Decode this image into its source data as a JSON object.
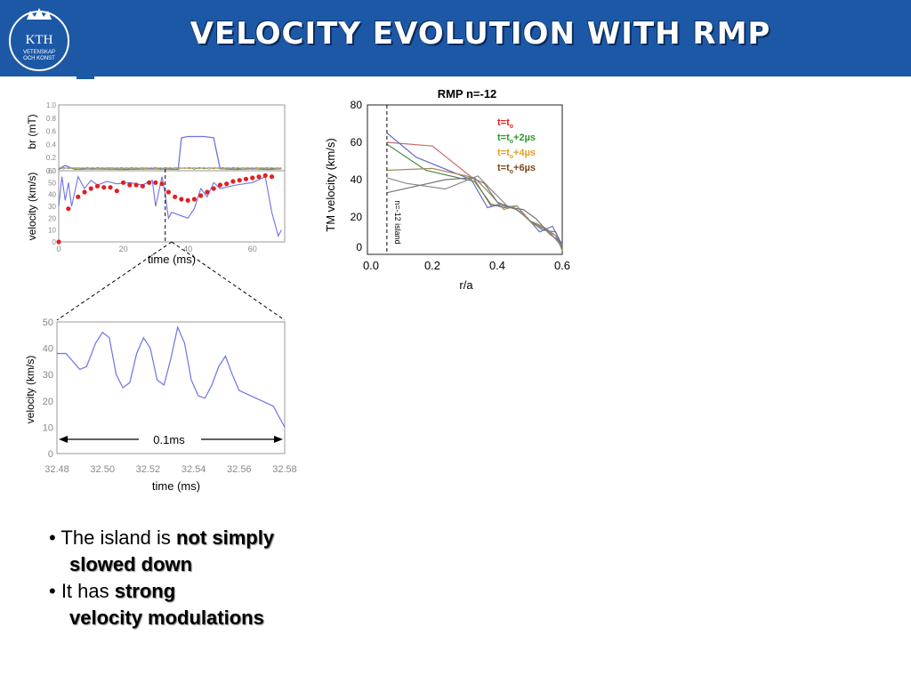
{
  "header": {
    "title": "VELOCITY EVOLUTION WITH RMP",
    "logo_text": [
      "KTH",
      "VETENSKAP",
      "OCH KONST"
    ],
    "color": "#1c58a6"
  },
  "chart_data": [
    {
      "type": "line",
      "id": "br-top",
      "ylabel": "br (mT)",
      "xlim": [
        0,
        70
      ],
      "ylim": [
        0,
        1.0
      ],
      "yticks": [
        "1.0",
        "0.8",
        "0.6",
        "0.4",
        "0.2",
        "0.0"
      ],
      "series": [
        {
          "color": "#6f72e6",
          "x": [
            0,
            2,
            5,
            10,
            20,
            30,
            37,
            38,
            40,
            45,
            48,
            50,
            55,
            60,
            65,
            69
          ],
          "y": [
            0.03,
            0.08,
            0.02,
            0.03,
            0.02,
            0.03,
            0.02,
            0.5,
            0.52,
            0.52,
            0.5,
            0.03,
            0.02,
            0.03,
            0.02,
            0.03
          ]
        }
      ]
    },
    {
      "type": "line+scatter",
      "id": "velocity-mid",
      "ylabel": "velocity (km/s)",
      "xlabel": "time (ms)",
      "xlim": [
        0,
        70
      ],
      "ylim": [
        0,
        60
      ],
      "xticks": [
        "0",
        "20",
        "40",
        "60"
      ],
      "yticks": [
        "60",
        "50",
        "40",
        "30",
        "20",
        "10",
        "0"
      ],
      "marker_x": 33,
      "line": {
        "color": "#6f72e6",
        "x": [
          0,
          1,
          2,
          3,
          4,
          6,
          8,
          10,
          12,
          15,
          18,
          22,
          26,
          29,
          30,
          32,
          33,
          34,
          35,
          38,
          40,
          42,
          44,
          46,
          48,
          50,
          55,
          60,
          64,
          66,
          68,
          69
        ],
        "y": [
          30,
          55,
          35,
          50,
          30,
          55,
          45,
          52,
          48,
          51,
          49,
          50,
          48,
          52,
          30,
          55,
          40,
          20,
          25,
          22,
          20,
          28,
          45,
          38,
          50,
          45,
          48,
          50,
          55,
          25,
          5,
          10
        ]
      },
      "markers": {
        "color": "#e02020",
        "x": [
          0,
          3,
          6,
          8,
          10,
          12,
          14,
          16,
          18,
          20,
          22,
          24,
          26,
          28,
          30,
          32,
          34,
          36,
          38,
          40,
          42,
          44,
          46,
          48,
          50,
          52,
          54,
          56,
          58,
          60,
          62,
          64,
          66
        ],
        "y": [
          0,
          28,
          38,
          42,
          45,
          47,
          46,
          46,
          43,
          50,
          48,
          48,
          47,
          50,
          50,
          49,
          42,
          38,
          36,
          35,
          36,
          39,
          42,
          45,
          48,
          49,
          51,
          52,
          53,
          54,
          55,
          56,
          55
        ]
      }
    },
    {
      "type": "line",
      "id": "velocity-zoom",
      "ylabel": "velocity (km/s)",
      "xlabel": "time (ms)",
      "annotation": "0.1ms",
      "xlim": [
        32.48,
        32.58
      ],
      "ylim": [
        0,
        50
      ],
      "xticks": [
        "32.48",
        "32.50",
        "32.52",
        "32.54",
        "32.56",
        "32.58"
      ],
      "yticks": [
        "50",
        "40",
        "30",
        "20",
        "10",
        "0"
      ],
      "series": [
        {
          "color": "#6f72e6",
          "x": [
            32.48,
            32.484,
            32.49,
            32.493,
            32.497,
            32.5,
            32.503,
            32.506,
            32.509,
            32.512,
            32.515,
            32.518,
            32.521,
            32.524,
            32.527,
            32.53,
            32.533,
            32.536,
            32.539,
            32.542,
            32.545,
            32.548,
            32.551,
            32.554,
            32.557,
            32.56,
            32.565,
            32.57,
            32.575,
            32.58
          ],
          "y": [
            38,
            38,
            32,
            33,
            42,
            46,
            44,
            30,
            25,
            27,
            38,
            44,
            40,
            28,
            26,
            36,
            48,
            42,
            28,
            22,
            21,
            26,
            33,
            37,
            30,
            24,
            22,
            20,
            18,
            10
          ]
        }
      ]
    },
    {
      "type": "line",
      "id": "rmp-right",
      "title": "RMP n=-12",
      "ylabel": "TM velocity (km/s)",
      "xlabel": "r/a",
      "xlim": [
        0,
        0.6
      ],
      "ylim": [
        0,
        80
      ],
      "xticks": [
        "0.0",
        "0.2",
        "0.4",
        "0.6"
      ],
      "yticks": [
        "80",
        "60",
        "40",
        "20",
        "0"
      ],
      "island_label": "n=-12 island",
      "island_x": 0.06,
      "legend": [
        {
          "label": "t=t",
          "sub": "o",
          "suffix": "",
          "color": "#e02020"
        },
        {
          "label": "t=t",
          "sub": "o",
          "suffix": "+2µs",
          "color": "#2a9a2a"
        },
        {
          "label": "t=t",
          "sub": "o",
          "suffix": "+4µs",
          "color": "#e0a020"
        },
        {
          "label": "t=t",
          "sub": "o",
          "suffix": "+6µs",
          "color": "#7a4a20"
        }
      ],
      "series": [
        {
          "color": "#c76a6a",
          "x": [
            0.06,
            0.2,
            0.33,
            0.38,
            0.42,
            0.46,
            0.5,
            0.54,
            0.58,
            0.6
          ],
          "y": [
            60,
            58,
            40,
            26,
            26,
            24,
            18,
            14,
            10,
            5
          ]
        },
        {
          "color": "#4a8a4a",
          "x": [
            0.06,
            0.18,
            0.33,
            0.38,
            0.42,
            0.46,
            0.5,
            0.54,
            0.58,
            0.6
          ],
          "y": [
            59,
            45,
            39,
            27,
            25,
            26,
            18,
            13,
            12,
            3
          ]
        },
        {
          "color": "#6a6ac7",
          "x": [
            0.06,
            0.15,
            0.32,
            0.37,
            0.41,
            0.45,
            0.49,
            0.53,
            0.57,
            0.6
          ],
          "y": [
            65,
            52,
            40,
            25,
            27,
            25,
            20,
            12,
            15,
            5
          ]
        },
        {
          "color": "#a38a5a",
          "x": [
            0.06,
            0.2,
            0.33,
            0.38,
            0.42,
            0.46,
            0.5,
            0.54,
            0.58,
            0.6
          ],
          "y": [
            45,
            46,
            41,
            32,
            24,
            26,
            18,
            15,
            10,
            2
          ]
        },
        {
          "color": "#888888",
          "x": [
            0.06,
            0.12,
            0.24,
            0.34,
            0.39,
            0.43,
            0.47,
            0.51,
            0.55,
            0.6
          ],
          "y": [
            41,
            38,
            35,
            42,
            33,
            26,
            23,
            16,
            14,
            4
          ]
        },
        {
          "color": "#777777",
          "x": [
            0.06,
            0.24,
            0.32,
            0.36,
            0.4,
            0.44,
            0.48,
            0.52,
            0.56,
            0.6
          ],
          "y": [
            33,
            40,
            41,
            38,
            28,
            25,
            24,
            19,
            11,
            6
          ]
        }
      ]
    }
  ],
  "bullets": [
    {
      "prefix": "• The island is ",
      "bold": "not simply",
      "cont": "slowed down"
    },
    {
      "prefix": "• It has ",
      "bold": "strong",
      "cont": "velocity modulations"
    }
  ]
}
